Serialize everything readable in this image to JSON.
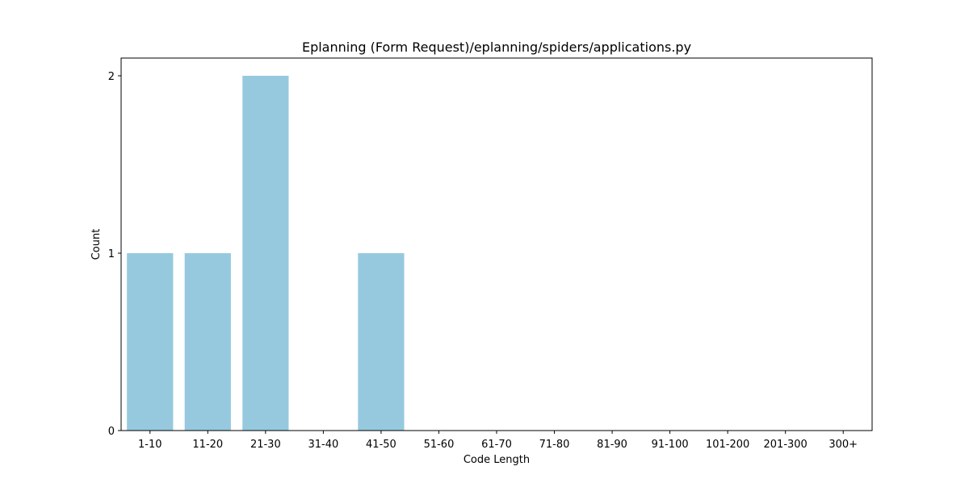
{
  "chart_data": {
    "type": "bar",
    "title": "Eplanning (Form Request)/eplanning/spiders/applications.py",
    "xlabel": "Code Length",
    "ylabel": "Count",
    "categories": [
      "1-10",
      "11-20",
      "21-30",
      "31-40",
      "41-50",
      "51-60",
      "61-70",
      "71-80",
      "81-90",
      "91-100",
      "101-200",
      "201-300",
      "300+"
    ],
    "values": [
      1,
      1,
      2,
      0,
      1,
      0,
      0,
      0,
      0,
      0,
      0,
      0,
      0
    ],
    "ylim": [
      0,
      2.1
    ],
    "yticks": [
      0,
      1,
      2
    ],
    "grid": false,
    "bar_color": "#96c9de",
    "frame_color": "#000000"
  }
}
